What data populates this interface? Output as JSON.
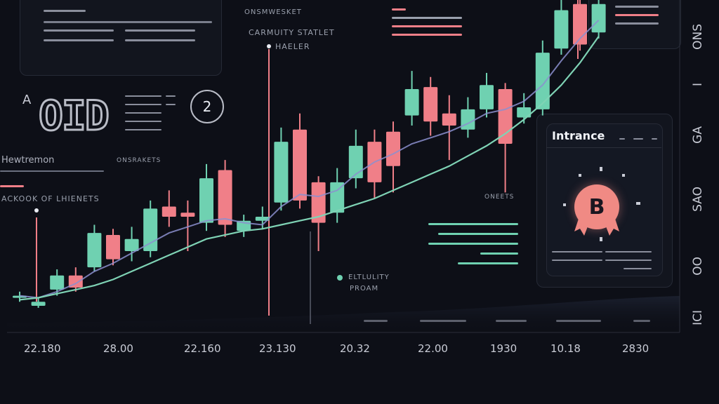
{
  "colors": {
    "up": "#6fd1b1",
    "down": "#f07f88",
    "curve": "#7fd3b5",
    "ma": "#8c8fcf",
    "bg": "#0d0f17"
  },
  "labels": {
    "top_center": "ONSMWESKET",
    "center_title_1": "CARMUITY STATLET",
    "center_title_2": "HAELER",
    "letter_a": "A",
    "big_digits": "OID",
    "circle_num": "2",
    "left_title": "Hewtremon",
    "left_sub": "ONSRAKETS",
    "left_note": "ACKOOK OF LHIENETS",
    "right_mid": "ONEETS",
    "bottom_mid_1": "ELTLULITY",
    "bottom_mid_2": "PROAM"
  },
  "card": {
    "title": "Intrance",
    "badge_letter": "B"
  },
  "right_axis": [
    "ONS",
    "I",
    "GA",
    "SAO",
    "OO",
    "ICI"
  ],
  "chart_data": {
    "type": "candlestick",
    "x_tick_labels": [
      "22.180",
      "28.00",
      "22.160",
      "23.130",
      "20.32",
      "22.00",
      "1930",
      "10.18",
      "2830"
    ],
    "candles": [
      {
        "o": 3.3,
        "c": 3.4,
        "h": 3.6,
        "l": 3.1
      },
      {
        "o": 2.9,
        "c": 3.1,
        "h": 3.3,
        "l": 2.8
      },
      {
        "o": 3.7,
        "c": 4.4,
        "h": 4.7,
        "l": 3.4
      },
      {
        "o": 4.4,
        "c": 3.8,
        "h": 4.8,
        "l": 3.6
      },
      {
        "o": 4.8,
        "c": 6.5,
        "h": 6.9,
        "l": 4.6
      },
      {
        "o": 6.4,
        "c": 5.2,
        "h": 6.7,
        "l": 4.9
      },
      {
        "o": 5.6,
        "c": 6.2,
        "h": 6.8,
        "l": 5.1
      },
      {
        "o": 5.6,
        "c": 7.7,
        "h": 8.1,
        "l": 5.3
      },
      {
        "o": 7.8,
        "c": 7.3,
        "h": 8.6,
        "l": 6.8
      },
      {
        "o": 7.5,
        "c": 7.3,
        "h": 8.1,
        "l": 5.6
      },
      {
        "o": 7.0,
        "c": 9.2,
        "h": 9.9,
        "l": 6.6
      },
      {
        "o": 9.6,
        "c": 6.9,
        "h": 10.1,
        "l": 6.3
      },
      {
        "o": 6.6,
        "c": 7.1,
        "h": 7.4,
        "l": 6.3
      },
      {
        "o": 7.1,
        "c": 7.3,
        "h": 7.8,
        "l": 6.7
      },
      {
        "o": 8.0,
        "c": 11.0,
        "h": 11.7,
        "l": 7.6
      },
      {
        "o": 11.6,
        "c": 8.1,
        "h": 12.4,
        "l": 7.7
      },
      {
        "o": 9.0,
        "c": 7.0,
        "h": 9.3,
        "l": 5.6
      },
      {
        "o": 7.5,
        "c": 9.0,
        "h": 9.7,
        "l": 7.0
      },
      {
        "o": 9.2,
        "c": 10.8,
        "h": 11.6,
        "l": 8.7
      },
      {
        "o": 11.0,
        "c": 9.0,
        "h": 11.6,
        "l": 8.2
      },
      {
        "o": 11.5,
        "c": 9.8,
        "h": 12.0,
        "l": 8.5
      },
      {
        "o": 12.3,
        "c": 13.6,
        "h": 14.5,
        "l": 11.8
      },
      {
        "o": 13.7,
        "c": 12.0,
        "h": 14.2,
        "l": 11.3
      },
      {
        "o": 12.4,
        "c": 11.8,
        "h": 13.3,
        "l": 10.1
      },
      {
        "o": 11.6,
        "c": 12.6,
        "h": 13.2,
        "l": 11.2
      },
      {
        "o": 12.6,
        "c": 13.8,
        "h": 14.4,
        "l": 12.2
      },
      {
        "o": 13.6,
        "c": 10.9,
        "h": 13.9,
        "l": 8.5
      },
      {
        "o": 12.2,
        "c": 12.7,
        "h": 13.4,
        "l": 11.9
      },
      {
        "o": 12.6,
        "c": 15.4,
        "h": 16.0,
        "l": 12.3
      },
      {
        "o": 15.6,
        "c": 17.5,
        "h": 18.0,
        "l": 15.3
      },
      {
        "o": 17.8,
        "c": 15.8,
        "h": 18.0,
        "l": 15.5
      },
      {
        "o": 16.4,
        "c": 17.8,
        "h": 18.0,
        "l": 16.1
      }
    ],
    "trend_curve": [
      3.2,
      3.3,
      3.5,
      3.7,
      3.9,
      4.2,
      4.6,
      5.0,
      5.4,
      5.8,
      6.2,
      6.4,
      6.6,
      6.7,
      6.9,
      7.1,
      7.3,
      7.6,
      7.9,
      8.2,
      8.6,
      9.0,
      9.4,
      9.8,
      10.3,
      10.8,
      11.4,
      12.1,
      12.9,
      13.8,
      14.9,
      16.2
    ],
    "moving_average": [
      3.4,
      3.3,
      3.6,
      4.0,
      4.6,
      5.0,
      5.5,
      6.0,
      6.5,
      6.8,
      7.1,
      7.2,
      7.0,
      6.9,
      7.8,
      8.4,
      8.3,
      8.6,
      9.4,
      10.0,
      10.4,
      10.9,
      11.2,
      11.5,
      11.9,
      12.4,
      12.6,
      13.0,
      13.8,
      15.0,
      16.1,
      17.0
    ],
    "ylim": [
      2.0,
      18.0
    ]
  }
}
